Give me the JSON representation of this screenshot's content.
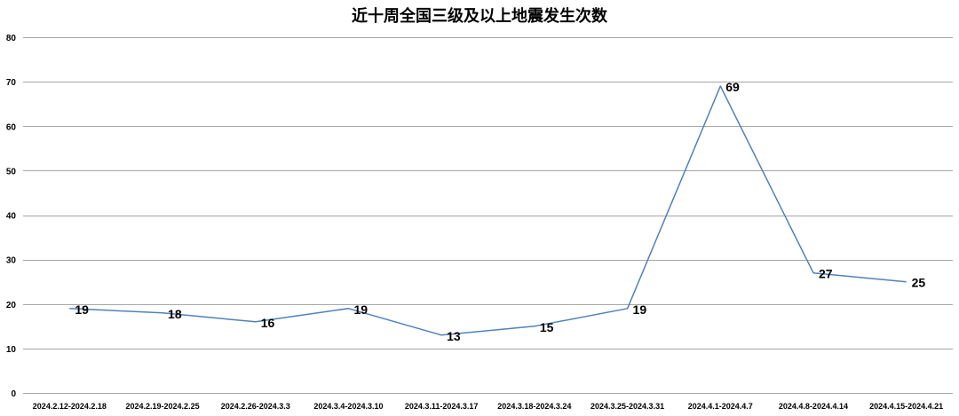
{
  "chart_data": {
    "type": "line",
    "title": "近十周全国三级及以上地震发生次数",
    "categories": [
      "2024.2.12-2024.2.18",
      "2024.2.19-2024.2.25",
      "2024.2.26-2024.3.3",
      "2024.3.4-2024.3.10",
      "2024.3.11-2024.3.17",
      "2024.3.18-2024.3.24",
      "2024.3.25-2024.3.31",
      "2024.4.1-2024.4.7",
      "2024.4.8-2024.4.14",
      "2024.4.15-2024.4.21"
    ],
    "values": [
      19,
      18,
      16,
      19,
      13,
      15,
      19,
      69,
      27,
      25
    ],
    "data_labels": [
      "19",
      "18",
      "16",
      "19",
      "13",
      "15",
      "19",
      "69",
      "27",
      "25"
    ],
    "ylim": [
      0,
      80
    ],
    "yticks": [
      0,
      10,
      20,
      30,
      40,
      50,
      60,
      70,
      80
    ],
    "ytick_labels": [
      "0",
      "10",
      "20",
      "30",
      "40",
      "50",
      "60",
      "70",
      "80"
    ],
    "grid": true,
    "legend": "none",
    "line_color": "#4f81bd"
  }
}
